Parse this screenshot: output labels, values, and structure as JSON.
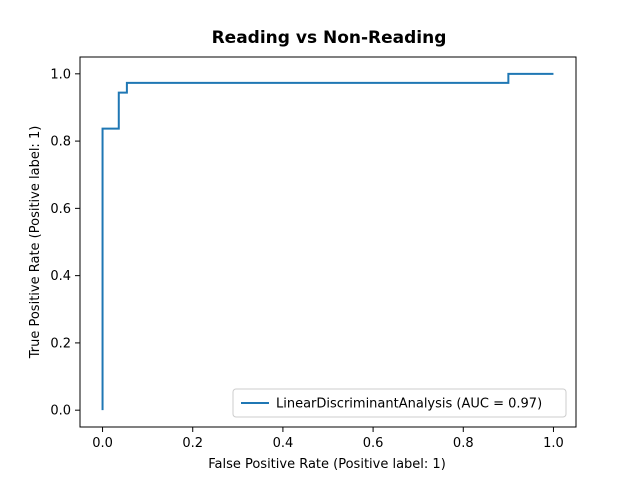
{
  "chart_data": {
    "type": "line",
    "title": "Reading vs Non-Reading",
    "xlabel": "False Positive Rate (Positive label: 1)",
    "ylabel": "True Positive Rate (Positive label: 1)",
    "xlim": [
      -0.05,
      1.05
    ],
    "ylim": [
      -0.05,
      1.05
    ],
    "xticks": [
      "0.0",
      "0.2",
      "0.4",
      "0.6",
      "0.8",
      "1.0"
    ],
    "yticks": [
      "0.0",
      "0.2",
      "0.4",
      "0.6",
      "0.8",
      "1.0"
    ],
    "grid": false,
    "legend_position": "lower-right",
    "series": [
      {
        "name": "LinearDiscriminantAnalysis (AUC = 0.97)",
        "color": "#1f77b4",
        "x": [
          0.0,
          0.0,
          0.0,
          0.036,
          0.036,
          0.054,
          0.054,
          0.9,
          0.9,
          1.0
        ],
        "y": [
          0.0,
          0.028,
          0.837,
          0.837,
          0.944,
          0.944,
          0.973,
          0.973,
          1.0,
          1.0
        ]
      }
    ]
  }
}
